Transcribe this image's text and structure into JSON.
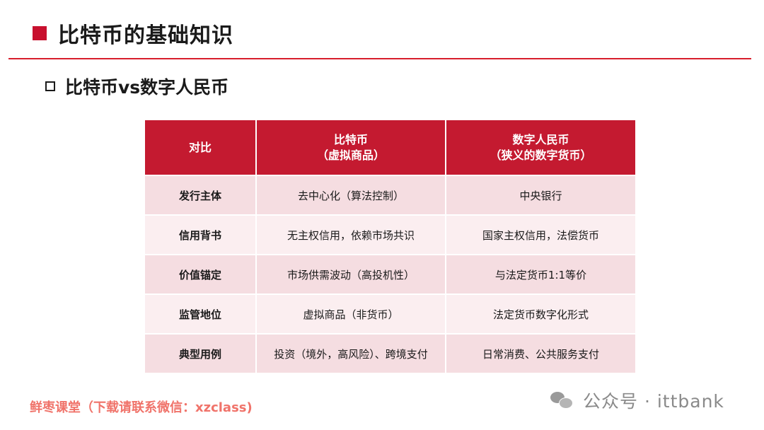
{
  "slide": {
    "title": "比特币的基础知识",
    "subtitle": "比特币vs数字人民币"
  },
  "table": {
    "headers": [
      {
        "line1": "对比",
        "line2": ""
      },
      {
        "line1": "比特币",
        "line2": "（虚拟商品）"
      },
      {
        "line1": "数字人民币",
        "line2": "（狭义的数字货币）"
      }
    ],
    "rows": [
      {
        "label": "发行主体",
        "bitcoin": "去中心化（算法控制）",
        "ecny": "中央银行"
      },
      {
        "label": "信用背书",
        "bitcoin": "无主权信用，依赖市场共识",
        "ecny": "国家主权信用，法偿货币"
      },
      {
        "label": "价值锚定",
        "bitcoin": "市场供需波动（高投机性）",
        "ecny": "与法定货币1:1等价"
      },
      {
        "label": "监管地位",
        "bitcoin": "虚拟商品（非货币）",
        "ecny": "法定货币数字化形式"
      },
      {
        "label": "典型用例",
        "bitcoin": "投资（境外，高风险）、跨境支付",
        "ecny": "日常消费、公共服务支付"
      }
    ]
  },
  "footer": {
    "left_text": "鲜枣课堂（下载请联系微信：xzclass)",
    "watermark_text": "公众号 · ittbank",
    "watermark_icon": "wechat-icon"
  },
  "colors": {
    "accent_red": "#c41a30",
    "row_odd": "#f5dde1",
    "row_even": "#fbeef0",
    "footer_text": "#f0736a"
  }
}
